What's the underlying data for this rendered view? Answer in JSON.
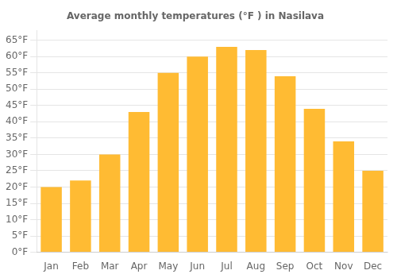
{
  "chart_data": {
    "type": "bar",
    "title": "Average monthly temperatures (°F ) in Nasilava",
    "categories": [
      "Jan",
      "Feb",
      "Mar",
      "Apr",
      "May",
      "Jun",
      "Jul",
      "Aug",
      "Sep",
      "Oct",
      "Nov",
      "Dec"
    ],
    "values": [
      20,
      22,
      30,
      43,
      55,
      60,
      63,
      62,
      54,
      44,
      34,
      25
    ],
    "color": "#FFBB33",
    "ylim": [
      0,
      68
    ],
    "yticks": [
      {
        "value": 0,
        "label": "0°F"
      },
      {
        "value": 5,
        "label": "5°F"
      },
      {
        "value": 10,
        "label": "10°F"
      },
      {
        "value": 15,
        "label": "15°F"
      },
      {
        "value": 20,
        "label": "20°F"
      },
      {
        "value": 25,
        "label": "25°F"
      },
      {
        "value": 30,
        "label": "30°F"
      },
      {
        "value": 35,
        "label": "35°F"
      },
      {
        "value": 40,
        "label": "40°F"
      },
      {
        "value": 45,
        "label": "45°F"
      },
      {
        "value": 50,
        "label": "50°F"
      },
      {
        "value": 55,
        "label": "55°F"
      },
      {
        "value": 60,
        "label": "60°F"
      },
      {
        "value": 65,
        "label": "65°F"
      }
    ],
    "grid": true
  }
}
